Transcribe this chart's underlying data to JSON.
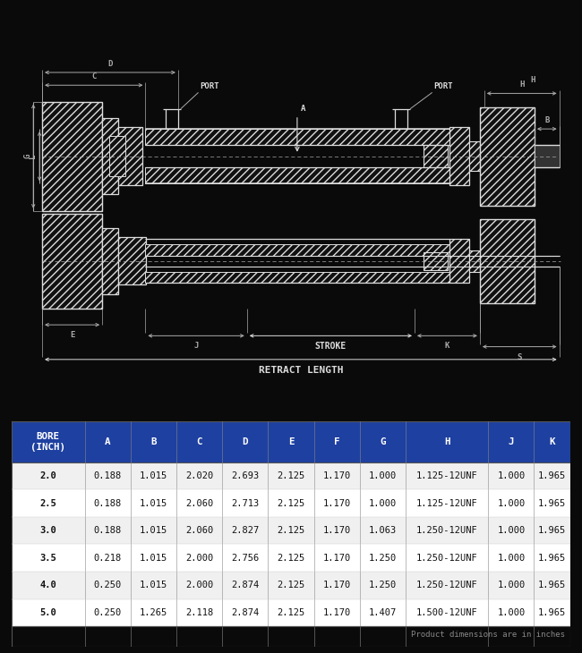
{
  "bg_color": "#0a0a0a",
  "diagram_bg": "#111111",
  "table_header_color": "#1e40a0",
  "table_header_text": "#ffffff",
  "table_row_bg_even": "#f0f0f0",
  "table_row_bg_odd": "#ffffff",
  "table_row_text": "#111111",
  "line_color": "#dddddd",
  "dim_line_color": "#aaaaaa",
  "columns": [
    "BORE\n(INCH)",
    "A",
    "B",
    "C",
    "D",
    "E",
    "F",
    "G",
    "H",
    "J",
    "K"
  ],
  "rows": [
    [
      "2.0",
      "0.188",
      "1.015",
      "2.020",
      "2.693",
      "2.125",
      "1.170",
      "1.000",
      "1.125-12UNF",
      "1.000",
      "1.965"
    ],
    [
      "2.5",
      "0.188",
      "1.015",
      "2.060",
      "2.713",
      "2.125",
      "1.170",
      "1.000",
      "1.125-12UNF",
      "1.000",
      "1.965"
    ],
    [
      "3.0",
      "0.188",
      "1.015",
      "2.060",
      "2.827",
      "2.125",
      "1.170",
      "1.063",
      "1.250-12UNF",
      "1.000",
      "1.965"
    ],
    [
      "3.5",
      "0.218",
      "1.015",
      "2.000",
      "2.756",
      "2.125",
      "1.170",
      "1.250",
      "1.250-12UNF",
      "1.000",
      "1.965"
    ],
    [
      "4.0",
      "0.250",
      "1.015",
      "2.000",
      "2.874",
      "2.125",
      "1.170",
      "1.250",
      "1.250-12UNF",
      "1.000",
      "1.965"
    ],
    [
      "5.0",
      "0.250",
      "1.265",
      "2.118",
      "2.874",
      "2.125",
      "1.170",
      "1.407",
      "1.500-12UNF",
      "1.000",
      "1.965"
    ]
  ],
  "footnote": "Product dimensions are in inches"
}
